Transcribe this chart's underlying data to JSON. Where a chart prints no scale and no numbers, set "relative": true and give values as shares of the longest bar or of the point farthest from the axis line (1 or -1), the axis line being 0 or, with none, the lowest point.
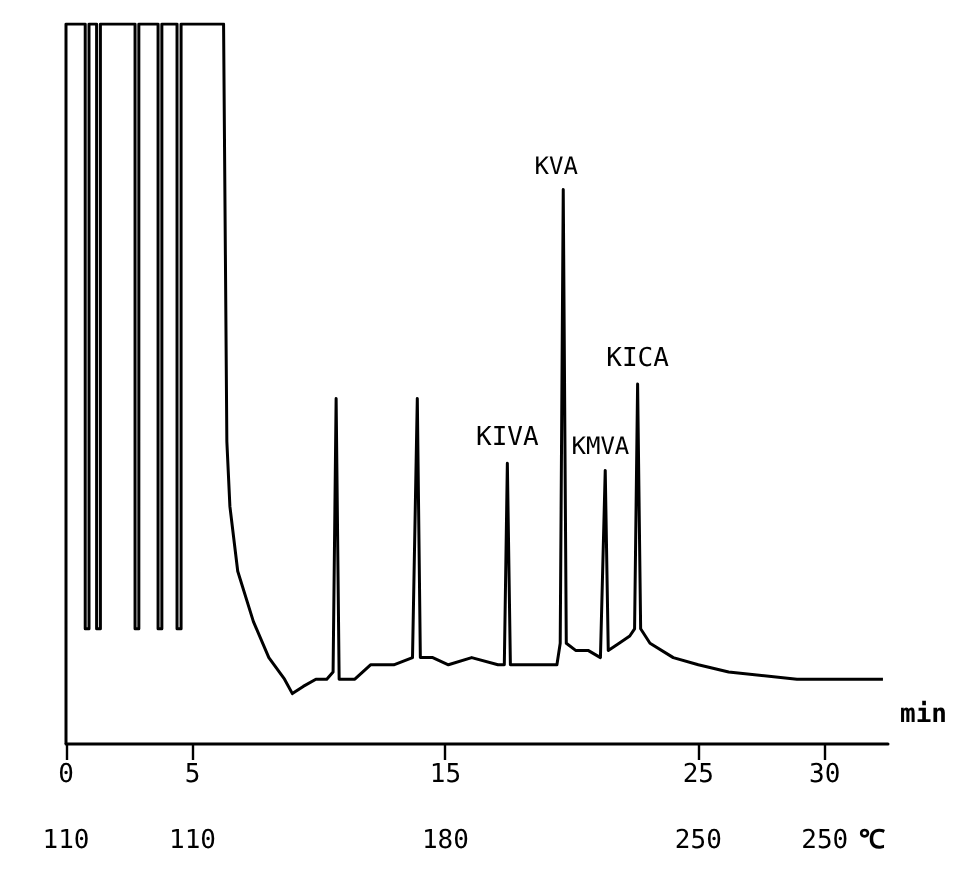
{
  "chart_data": {
    "type": "line",
    "relative": true,
    "xlabel": "min",
    "x2label": "℃",
    "xlim": [
      0,
      32.5
    ],
    "xticks": [
      0,
      5,
      15,
      25,
      30
    ],
    "marker": "none",
    "series": [
      {
        "color": "#000000",
        "x": [
          0,
          0,
          0.76,
          0.76,
          0.91,
          0.91,
          1.21,
          1.21,
          1.36,
          1.36,
          2.73,
          2.73,
          2.88,
          2.88,
          3.64,
          3.64,
          3.79,
          3.79,
          4.39,
          4.39,
          4.55,
          4.55,
          6.23,
          6.36,
          6.48,
          6.79,
          7.41,
          8.02,
          8.64,
          8.95,
          9.38,
          9.88,
          10.31,
          10.56,
          10.68,
          10.8,
          11.42,
          12.04,
          12.96,
          13.7,
          13.89,
          14.01,
          14.5,
          15.12,
          16.04,
          17.08,
          17.33,
          17.45,
          17.57,
          18.19,
          18.92,
          19.41,
          19.54,
          19.66,
          19.78,
          20.15,
          20.64,
          21.13,
          21.32,
          21.44,
          21.87,
          22.29,
          22.48,
          22.6,
          22.72,
          23.09,
          24.01,
          25,
          26.2,
          28.9,
          32.3
        ],
        "values": [
          0,
          1,
          1,
          0.16,
          0.16,
          1,
          1,
          0.16,
          0.16,
          1,
          1,
          0.16,
          0.16,
          1,
          1,
          0.16,
          0.16,
          1,
          1,
          0.16,
          0.16,
          1,
          1,
          0.42,
          0.33,
          0.24,
          0.17,
          0.12,
          0.09,
          0.07,
          0.08,
          0.09,
          0.09,
          0.1,
          0.48,
          0.09,
          0.09,
          0.11,
          0.11,
          0.12,
          0.48,
          0.12,
          0.12,
          0.11,
          0.12,
          0.11,
          0.11,
          0.39,
          0.11,
          0.11,
          0.11,
          0.11,
          0.14,
          0.77,
          0.14,
          0.13,
          0.13,
          0.12,
          0.38,
          0.13,
          0.14,
          0.15,
          0.16,
          0.5,
          0.16,
          0.14,
          0.12,
          0.11,
          0.1,
          0.09,
          0.09
        ]
      }
    ],
    "annotations": [
      {
        "text": "KIVA",
        "x": 17.45,
        "y": 0.39
      },
      {
        "text": "KVA",
        "x": 19.66,
        "y": 0.77
      },
      {
        "text": "KMVA",
        "x": 21.32,
        "y": 0.38
      },
      {
        "text": "KICA",
        "x": 22.6,
        "y": 0.5
      },
      "110",
      "110",
      "180",
      "250",
      "250"
    ]
  }
}
